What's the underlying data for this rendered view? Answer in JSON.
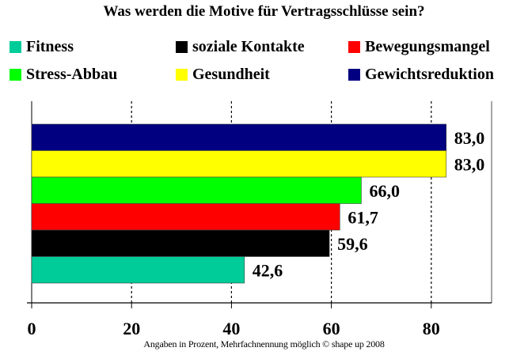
{
  "chart_data": {
    "type": "bar",
    "orientation": "horizontal",
    "title": "Was werden die Motive für Vertragsschlüsse sein?",
    "categories": [
      "Gewichtsreduktion",
      "Gesundheit",
      "Stress-Abbau",
      "Bewegungsmangel",
      "soziale Kontakte",
      "Fitness"
    ],
    "values": [
      83.0,
      83.0,
      66.0,
      61.7,
      59.6,
      42.6
    ],
    "value_labels": [
      "83,0",
      "83,0",
      "66,0",
      "61,7",
      "59,6",
      "42,6"
    ],
    "colors": [
      "#000080",
      "#ffff00",
      "#00ff00",
      "#ff0000",
      "#000000",
      "#00cc99"
    ],
    "xlim": [
      0,
      90
    ],
    "xticks": [
      0,
      20,
      40,
      60,
      80
    ],
    "xtick_labels": [
      "0",
      "20",
      "40",
      "60",
      "80"
    ],
    "grid": "vertical dashed",
    "legend_placement": "top",
    "legend": [
      {
        "label": "Fitness",
        "color": "#00cc99"
      },
      {
        "label": "soziale Kontakte",
        "color": "#000000"
      },
      {
        "label": "Bewegungsmangel",
        "color": "#ff0000"
      },
      {
        "label": "Stress-Abbau",
        "color": "#00ff00"
      },
      {
        "label": "Gesundheit",
        "color": "#ffff00"
      },
      {
        "label": "Gewichtsreduktion",
        "color": "#000080"
      }
    ],
    "footnote": "Angaben in Prozent, Mehrfachnennung möglich © shape up 2008"
  }
}
